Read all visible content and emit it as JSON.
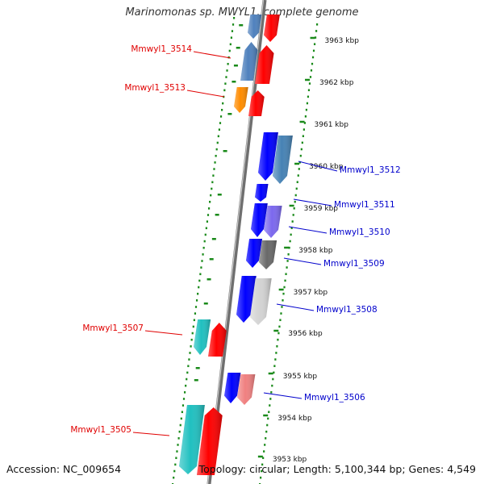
{
  "title": "Marinomonas sp. MWYL1, complete genome",
  "accession": "Accession: NC_009654",
  "summary": "Topology: circular; Length: 5,100,344 bp; Genes: 4,549",
  "ticks": [
    "3963 kbp",
    "3962 kbp",
    "3961 kbp",
    "3960 kbp",
    "3959 kbp",
    "3958 kbp",
    "3957 kbp",
    "3956 kbp",
    "3955 kbp",
    "3954 kbp",
    "3953 kbp"
  ],
  "genes": [
    {
      "label": "Mmwyl1_3514",
      "strand": "forward",
      "color": "#4f81bd"
    },
    {
      "label": "Mmwyl1_3513",
      "strand": "forward",
      "color": "#ff8c00"
    },
    {
      "label": "Mmwyl1_3512",
      "strand": "reverse",
      "color": "#4682b4"
    },
    {
      "label": "Mmwyl1_3511",
      "strand": "reverse",
      "color": "#0000ff"
    },
    {
      "label": "Mmwyl1_3510",
      "strand": "reverse",
      "color": "#7b68ee"
    },
    {
      "label": "Mmwyl1_3509",
      "strand": "reverse",
      "color": "#696969"
    },
    {
      "label": "Mmwyl1_3508",
      "strand": "reverse",
      "color": "#d3d3d3"
    },
    {
      "label": "Mmwyl1_3507",
      "strand": "forward",
      "color": "#20c0c0"
    },
    {
      "label": "Mmwyl1_3506",
      "strand": "reverse",
      "color": "#f08080"
    },
    {
      "label": "Mmwyl1_3505",
      "strand": "forward",
      "color": "#20c0c0"
    }
  ],
  "colors": {
    "forward_label": "#e00000",
    "reverse_label": "#0000cc",
    "cds_forward": "#ff0000",
    "cds_reverse": "#0000ff",
    "backbone": "#888888"
  }
}
